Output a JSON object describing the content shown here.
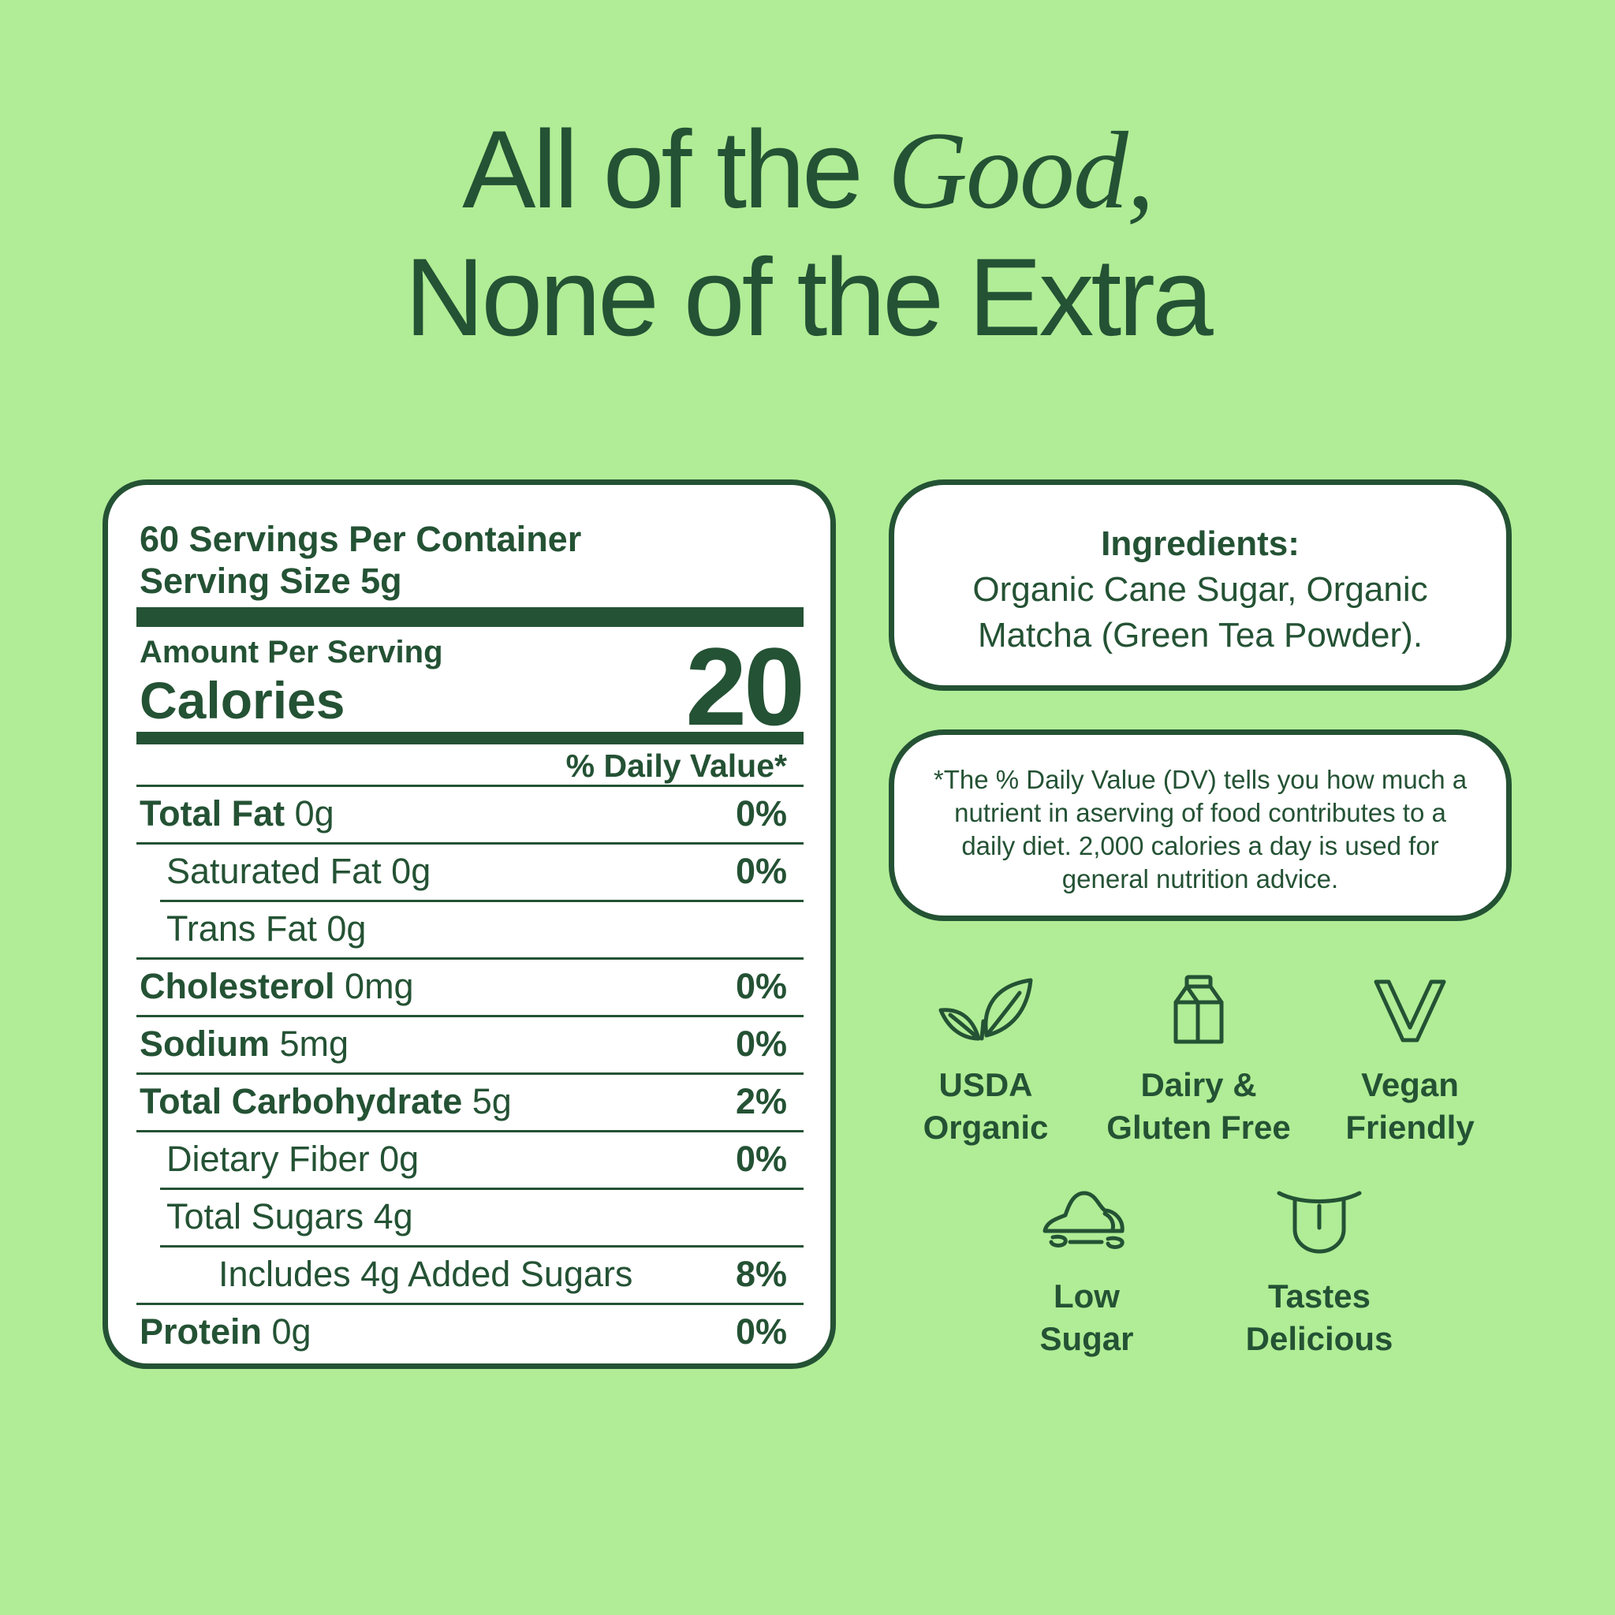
{
  "headline": {
    "line1_prefix": "All of the ",
    "line1_italic": "Good,",
    "line2": "None of the Extra"
  },
  "nutrition": {
    "servings_per_container": "60 Servings Per Container",
    "serving_size": "Serving Size 5g",
    "amount_per_serving": "Amount Per Serving",
    "calories_label": "Calories",
    "calories_value": "20",
    "daily_value_header": "% Daily Value*",
    "rows": [
      {
        "bold": "Total Fat",
        "light": " 0g",
        "pct": "0%"
      },
      {
        "bold": "",
        "light": "Saturated Fat 0g",
        "pct": "0%"
      },
      {
        "bold": "",
        "light": "Trans Fat 0g",
        "pct": ""
      },
      {
        "bold": "Cholesterol",
        "light": " 0mg",
        "pct": "0%"
      },
      {
        "bold": "Sodium",
        "light": " 5mg",
        "pct": "0%"
      },
      {
        "bold": "Total Carbohydrate",
        "light": " 5g",
        "pct": "2%"
      },
      {
        "bold": "",
        "light": "Dietary Fiber 0g",
        "pct": "0%"
      },
      {
        "bold": "",
        "light": "Total Sugars 4g",
        "pct": ""
      },
      {
        "bold": "",
        "light": "Includes 4g Added Sugars",
        "pct": "8%"
      },
      {
        "bold": "Protein",
        "light": " 0g",
        "pct": "0%"
      }
    ]
  },
  "ingredients": {
    "title": "Ingredients:",
    "text": "Organic Cane Sugar, Organic Matcha (Green Tea Powder)."
  },
  "daily_value_note": {
    "text": "*The % Daily Value (DV) tells you how much a nutrient in aserving of food contributes to a daily diet. 2,000 calories a day is used for general nutrition advice."
  },
  "badges": [
    {
      "icon": "leaf-icon",
      "label_line1": "USDA",
      "label_line2": "Organic"
    },
    {
      "icon": "milk-carton-icon",
      "label_line1": "Dairy &",
      "label_line2": "Gluten Free"
    },
    {
      "icon": "v-icon",
      "label_line1": "Vegan",
      "label_line2": "Friendly"
    },
    {
      "icon": "sugar-pile-icon",
      "label_line1": "Low",
      "label_line2": "Sugar"
    },
    {
      "icon": "tongue-icon",
      "label_line1": "Tastes",
      "label_line2": "Delicious"
    }
  ],
  "colors": {
    "background": "#b0ed96",
    "ink": "#245234",
    "panel": "#ffffff"
  }
}
